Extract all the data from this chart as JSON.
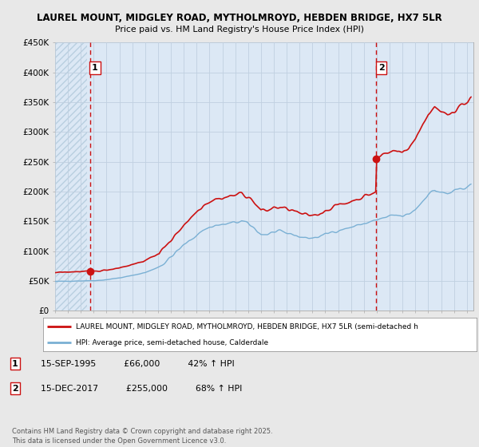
{
  "title_line1": "LAUREL MOUNT, MIDGLEY ROAD, MYTHOLMROYD, HEBDEN BRIDGE, HX7 5LR",
  "title_line2": "Price paid vs. HM Land Registry's House Price Index (HPI)",
  "ylim": [
    0,
    450000
  ],
  "yticks": [
    0,
    50000,
    100000,
    150000,
    200000,
    250000,
    300000,
    350000,
    400000,
    450000
  ],
  "ytick_labels": [
    "£0",
    "£50K",
    "£100K",
    "£150K",
    "£200K",
    "£250K",
    "£300K",
    "£350K",
    "£400K",
    "£450K"
  ],
  "fig_bg_color": "#e8e8e8",
  "plot_bg_color": "#dce8f5",
  "hatch_color": "#b8cfe0",
  "grid_color": "#c0d0e0",
  "red_line_color": "#cc1111",
  "blue_line_color": "#7ab0d4",
  "dashed_line_color": "#cc1111",
  "marker_color": "#cc1111",
  "sale1_x": 1995.71,
  "sale1_y": 66000,
  "sale1_label": "1",
  "sale2_x": 2017.96,
  "sale2_y": 255000,
  "sale2_label": "2",
  "legend_red_label": "LAUREL MOUNT, MIDGLEY ROAD, MYTHOLMROYD, HEBDEN BRIDGE, HX7 5LR (semi-detached h",
  "legend_blue_label": "HPI: Average price, semi-detached house, Calderdale",
  "note1_label": "1",
  "note1_date": "15-SEP-1995",
  "note1_price": "£66,000",
  "note1_hpi": "42% ↑ HPI",
  "note2_label": "2",
  "note2_date": "15-DEC-2017",
  "note2_price": "£255,000",
  "note2_hpi": "68% ↑ HPI",
  "footer": "Contains HM Land Registry data © Crown copyright and database right 2025.\nThis data is licensed under the Open Government Licence v3.0.",
  "xmin": 1993.0,
  "xmax": 2025.5
}
